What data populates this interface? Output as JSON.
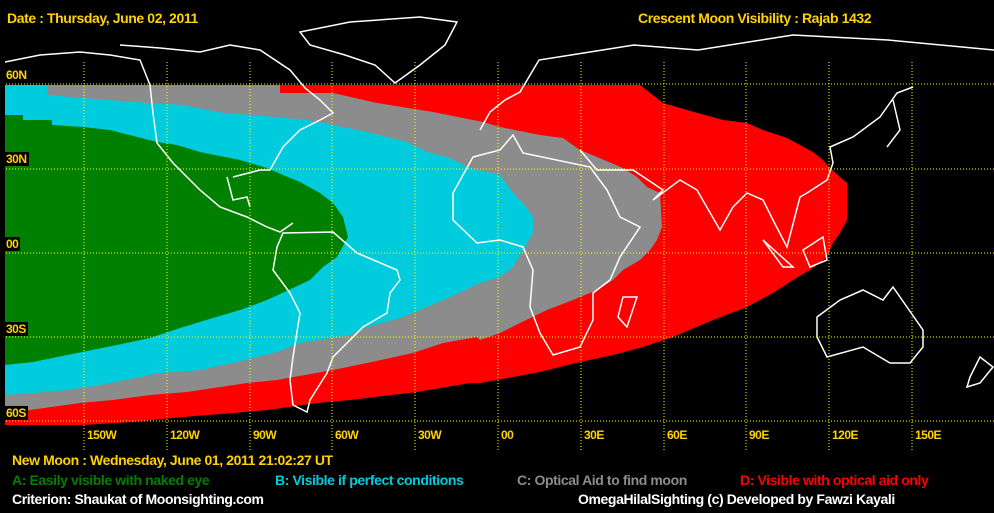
{
  "header": {
    "date": "Date : Thursday, June 02, 2011",
    "title": "Crescent Moon Visibility : Rajab  1432"
  },
  "map": {
    "latitude_labels": [
      "60N",
      "30N",
      "00",
      "30S",
      "60S"
    ],
    "longitude_labels": [
      "150W",
      "120W",
      "90W",
      "60W",
      "30W",
      "00",
      "30E",
      "60E",
      "90E",
      "120E",
      "150E"
    ],
    "zone_colors": {
      "A": "#008000",
      "B": "#00ccdd",
      "C": "#8c8c8c",
      "D": "#ff0000"
    },
    "grid_color": "#ffff00",
    "coastline_color": "#ffffff"
  },
  "footer": {
    "new_moon": "New Moon : Wednesday, June 01, 2011  21:02:27  UT",
    "legend": [
      {
        "label": "A: Easily visible with naked eye",
        "color": "#008000"
      },
      {
        "label": "B: Visible if perfect conditions",
        "color": "#00ccdd"
      },
      {
        "label": "C: Optical Aid to find moon",
        "color": "#8c8c8c"
      },
      {
        "label": "D: Visible with optical aid only",
        "color": "#ff0000"
      }
    ],
    "criterion": "Criterion: Shaukat of Moonsighting.com",
    "credit": "OmegaHilalSighting  (c)  Developed by Fawzi Kayali"
  }
}
